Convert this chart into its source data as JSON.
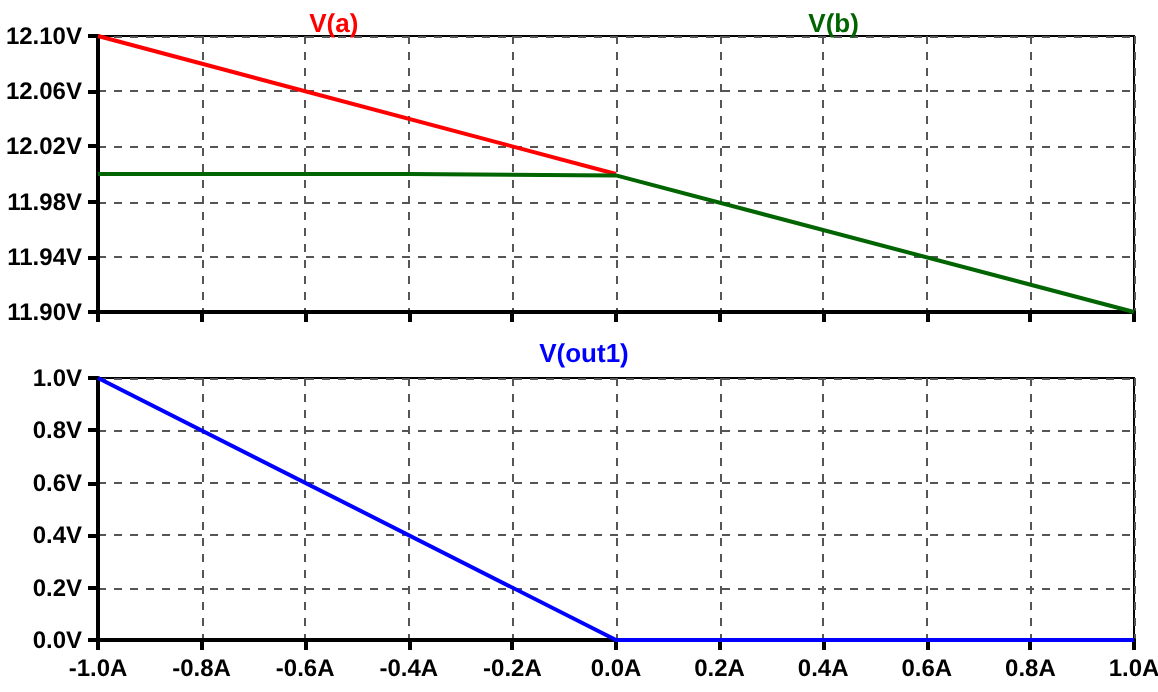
{
  "chart_data": [
    {
      "type": "line",
      "legend": "top",
      "grid": true,
      "tick_labels": "y",
      "xlim": [
        -1,
        1
      ],
      "xticks": [
        {
          "value": -1,
          "label": null
        },
        {
          "value": -0.8,
          "label": null
        },
        {
          "value": -0.6,
          "label": null
        },
        {
          "value": -0.4,
          "label": null
        },
        {
          "value": -0.2,
          "label": null
        },
        {
          "value": 0,
          "label": null
        },
        {
          "value": 0.2,
          "label": null
        },
        {
          "value": 0.4,
          "label": null
        },
        {
          "value": 0.6,
          "label": null
        },
        {
          "value": 0.8,
          "label": null
        },
        {
          "value": 1,
          "label": null
        }
      ],
      "ylim": [
        11.9,
        12.1
      ],
      "yticks": [
        {
          "value": 11.9,
          "label": "11.90V"
        },
        {
          "value": 11.94,
          "label": "11.94V"
        },
        {
          "value": 11.98,
          "label": "11.98V"
        },
        {
          "value": 12.02,
          "label": "12.02V"
        },
        {
          "value": 12.06,
          "label": "12.06V"
        },
        {
          "value": 12.1,
          "label": "12.10V"
        }
      ],
      "series": [
        {
          "name": "V(a)",
          "color": "#ff0000",
          "x": [
            -1,
            0
          ],
          "values": [
            12.1,
            12.0
          ]
        },
        {
          "name": "V(b)",
          "color": "#006400",
          "x": [
            -1,
            -0.4,
            -0.4,
            0,
            1
          ],
          "values": [
            12.0,
            12.0,
            11.999,
            11.999,
            11.9
          ]
        }
      ]
    },
    {
      "type": "line",
      "legend": "top",
      "grid": true,
      "xlim": [
        -1,
        1
      ],
      "xticks": [
        {
          "value": -1,
          "label": "-1.0A"
        },
        {
          "value": -0.8,
          "label": "-0.8A"
        },
        {
          "value": -0.6,
          "label": "-0.6A"
        },
        {
          "value": -0.4,
          "label": "-0.4A"
        },
        {
          "value": -0.2,
          "label": "-0.2A"
        },
        {
          "value": 0,
          "label": "0.0A"
        },
        {
          "value": 0.2,
          "label": "0.2A"
        },
        {
          "value": 0.4,
          "label": "0.4A"
        },
        {
          "value": 0.6,
          "label": "0.6A"
        },
        {
          "value": 0.8,
          "label": "0.8A"
        },
        {
          "value": 1,
          "label": "1.0A"
        }
      ],
      "ylim": [
        0,
        1
      ],
      "yticks": [
        {
          "value": 0,
          "label": "0.0V"
        },
        {
          "value": 0.2,
          "label": "0.2V"
        },
        {
          "value": 0.4,
          "label": "0.4V"
        },
        {
          "value": 0.6,
          "label": "0.6V"
        },
        {
          "value": 0.8,
          "label": "0.8V"
        },
        {
          "value": 1,
          "label": "1.0V"
        }
      ],
      "series": [
        {
          "name": "V(out1)",
          "color": "#0000ff",
          "x": [
            -1,
            0,
            1
          ],
          "values": [
            1,
            0,
            0
          ]
        }
      ]
    }
  ]
}
